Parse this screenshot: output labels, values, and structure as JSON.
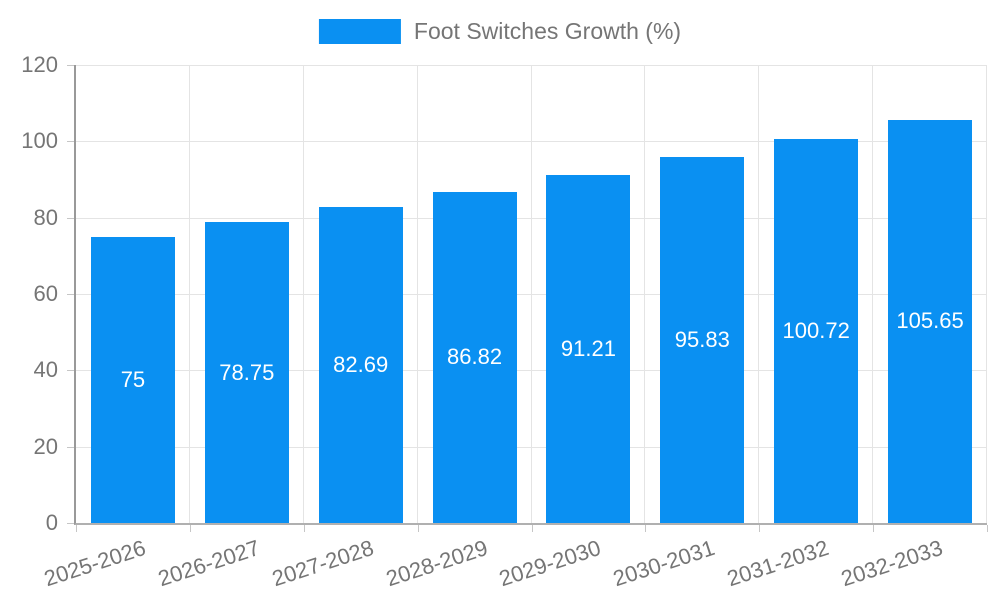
{
  "legend": {
    "label": "Foot Switches Growth (%)"
  },
  "colors": {
    "bar": "#0a90f2",
    "text": "#757575",
    "grid_line": "#e4e4e4",
    "y_axis_line": "#999999",
    "x_axis_line": "#b0b0b0",
    "tick": "#c6c6c6",
    "bar_label": "#ffffff"
  },
  "chart_data": {
    "type": "bar",
    "title": "Foot Switches Growth (%)",
    "series": [
      {
        "name": "Foot Switches Growth (%)",
        "values": [
          75,
          78.75,
          82.69,
          86.82,
          91.21,
          95.83,
          100.72,
          105.65
        ],
        "labels": [
          "75",
          "78.75",
          "82.69",
          "86.82",
          "91.21",
          "95.83",
          "100.72",
          "105.65"
        ]
      }
    ],
    "categories": [
      "2025-2026",
      "2026-2027",
      "2027-2028",
      "2028-2029",
      "2029-2030",
      "2030-2031",
      "2031-2032",
      "2032-2033"
    ],
    "xlabel": "",
    "ylabel": "",
    "ylim": [
      0,
      120
    ],
    "yticks": [
      0,
      20,
      40,
      60,
      80,
      100,
      120
    ],
    "grid": true,
    "legend_position": "top-center",
    "bar_labels_inside": true,
    "x_label_rotation_deg": -18
  }
}
